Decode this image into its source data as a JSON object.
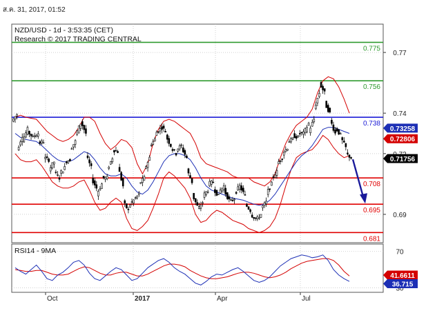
{
  "timestamp": "ส.ค. 31, 2017, 01:52",
  "header": {
    "line1": "NZD/USD - 1d - 3:53:35 (CET)",
    "line2": "Research © 2017 TRADING CENTRAL"
  },
  "colors": {
    "candle": "#000000",
    "bollinger": "#d40000",
    "ma": "#1c2fb5",
    "resistance": "#2e9a2e",
    "pivot": "#1a1ad6",
    "support": "#e00000",
    "arrow": "#1a1a9a",
    "grid": "#bfbfbf"
  },
  "chart_data": [
    {
      "type": "candlestick",
      "ylim": [
        0.676,
        0.784
      ],
      "y_ticks": [
        "0.77",
        "0.74",
        "0.72",
        "0.69"
      ],
      "x_ticks": [
        "Oct",
        "2017",
        "Apr",
        "Jul"
      ],
      "levels": [
        {
          "value": 0.775,
          "label": "0.775",
          "kind": "resistance"
        },
        {
          "value": 0.756,
          "label": "0.756",
          "kind": "resistance"
        },
        {
          "value": 0.738,
          "label": "0.738",
          "kind": "pivot"
        },
        {
          "value": 0.708,
          "label": "0.708",
          "kind": "support"
        },
        {
          "value": 0.695,
          "label": "0.695",
          "kind": "support"
        },
        {
          "value": 0.681,
          "label": "0.681",
          "kind": "support"
        }
      ],
      "price_badges": [
        {
          "label": "0.73258",
          "value": 0.73258,
          "color": "#1c2fb5"
        },
        {
          "label": "0.72806",
          "value": 0.72806,
          "color": "#d40000"
        },
        {
          "label": "0.71756",
          "value": 0.71756,
          "color": "#000000"
        }
      ],
      "close_path": [
        [
          0.736,
          0.7395
        ],
        [
          0.7215,
          0.729
        ],
        [
          0.7265,
          0.732
        ],
        [
          0.731,
          0.728
        ],
        [
          0.7285,
          0.73
        ],
        [
          0.725,
          0.726
        ],
        [
          0.718,
          0.717
        ],
        [
          0.712,
          0.716
        ],
        [
          0.711,
          0.708
        ],
        [
          0.71,
          0.713
        ],
        [
          0.716,
          0.717
        ],
        [
          0.722,
          0.726
        ],
        [
          0.729,
          0.735
        ],
        [
          0.736,
          0.73
        ],
        [
          0.719,
          0.713
        ],
        [
          0.708,
          0.703
        ],
        [
          0.7,
          0.705
        ],
        [
          0.708,
          0.708
        ],
        [
          0.712,
          0.718
        ],
        [
          0.722,
          0.721
        ],
        [
          0.714,
          0.704
        ],
        [
          0.696,
          0.692
        ],
        [
          0.694,
          0.697
        ],
        [
          0.697,
          0.7
        ],
        [
          0.705,
          0.708
        ],
        [
          0.712,
          0.718
        ],
        [
          0.724,
          0.727
        ],
        [
          0.73,
          0.732
        ],
        [
          0.734,
          0.731
        ],
        [
          0.729,
          0.724
        ],
        [
          0.723,
          0.72
        ],
        [
          0.722,
          0.724
        ],
        [
          0.723,
          0.718
        ],
        [
          0.712,
          0.706
        ],
        [
          0.7,
          0.694
        ],
        [
          0.692,
          0.696
        ],
        [
          0.699,
          0.702
        ],
        [
          0.705,
          0.706
        ],
        [
          0.703,
          0.699
        ],
        [
          0.701,
          0.704
        ],
        [
          0.702,
          0.697
        ],
        [
          0.696,
          0.698
        ],
        [
          0.7,
          0.704
        ],
        [
          0.704,
          0.699
        ],
        [
          0.695,
          0.692
        ],
        [
          0.69,
          0.688
        ],
        [
          0.687,
          0.69
        ],
        [
          0.693,
          0.696
        ],
        [
          0.7,
          0.705
        ],
        [
          0.708,
          0.711
        ],
        [
          0.715,
          0.718
        ],
        [
          0.72,
          0.723
        ],
        [
          0.726,
          0.727
        ],
        [
          0.729,
          0.728
        ],
        [
          0.73,
          0.73
        ],
        [
          0.73,
          0.735
        ],
        [
          0.731,
          0.737
        ],
        [
          0.742,
          0.75
        ],
        [
          0.755,
          0.75
        ],
        [
          0.745,
          0.74
        ],
        [
          0.737,
          0.73
        ],
        [
          0.733,
          0.729
        ],
        [
          0.728,
          0.723
        ],
        [
          0.72,
          0.718
        ]
      ],
      "bollinger_upper": [
        0.738,
        0.739,
        0.738,
        0.7375,
        0.737,
        0.734,
        0.731,
        0.729,
        0.727,
        0.726,
        0.727,
        0.729,
        0.733,
        0.738,
        0.738,
        0.736,
        0.73,
        0.725,
        0.722,
        0.724,
        0.727,
        0.726,
        0.723,
        0.715,
        0.71,
        0.715,
        0.725,
        0.732,
        0.736,
        0.737,
        0.736,
        0.734,
        0.732,
        0.73,
        0.725,
        0.718,
        0.715,
        0.714,
        0.713,
        0.712,
        0.711,
        0.709,
        0.708,
        0.708,
        0.708,
        0.706,
        0.705,
        0.704,
        0.706,
        0.71,
        0.718,
        0.725,
        0.73,
        0.734,
        0.736,
        0.738,
        0.742,
        0.75,
        0.756,
        0.758,
        0.757,
        0.753,
        0.747,
        0.74
      ],
      "bollinger_lower": [
        0.72,
        0.717,
        0.716,
        0.716,
        0.717,
        0.714,
        0.71,
        0.706,
        0.704,
        0.703,
        0.703,
        0.704,
        0.706,
        0.707,
        0.702,
        0.696,
        0.692,
        0.693,
        0.696,
        0.698,
        0.696,
        0.688,
        0.683,
        0.682,
        0.684,
        0.687,
        0.693,
        0.7,
        0.708,
        0.711,
        0.709,
        0.706,
        0.703,
        0.698,
        0.69,
        0.686,
        0.687,
        0.69,
        0.692,
        0.691,
        0.689,
        0.687,
        0.686,
        0.685,
        0.683,
        0.682,
        0.681,
        0.682,
        0.684,
        0.688,
        0.695,
        0.704,
        0.712,
        0.718,
        0.72,
        0.721,
        0.722,
        0.725,
        0.729,
        0.727,
        0.723,
        0.72,
        0.718,
        0.719
      ],
      "moving_average": [
        0.73,
        0.728,
        0.727,
        0.7265,
        0.726,
        0.724,
        0.7215,
        0.719,
        0.717,
        0.716,
        0.716,
        0.717,
        0.719,
        0.721,
        0.72,
        0.717,
        0.713,
        0.71,
        0.709,
        0.709,
        0.71,
        0.708,
        0.704,
        0.701,
        0.7,
        0.702,
        0.706,
        0.711,
        0.716,
        0.719,
        0.72,
        0.72,
        0.719,
        0.717,
        0.713,
        0.708,
        0.704,
        0.702,
        0.701,
        0.7,
        0.699,
        0.698,
        0.6975,
        0.697,
        0.696,
        0.695,
        0.6945,
        0.695,
        0.697,
        0.7,
        0.704,
        0.708,
        0.712,
        0.716,
        0.719,
        0.721,
        0.724,
        0.728,
        0.732,
        0.733,
        0.733,
        0.732,
        0.731,
        0.73
      ],
      "arrow": {
        "from": 0.7172,
        "to": 0.696
      }
    },
    {
      "type": "line",
      "title": "RSI14 - 9MA",
      "ylim": [
        25,
        78
      ],
      "y_ticks": [
        "70",
        "30"
      ],
      "badges": [
        {
          "label": "41.6611",
          "value": 41.6611,
          "color": "#d40000"
        },
        {
          "label": "36.715",
          "value": 36.715,
          "color": "#1c2fb5"
        }
      ],
      "series": [
        {
          "name": "RSI14",
          "values": [
            52,
            48,
            45,
            50,
            55,
            48,
            40,
            38,
            44,
            47,
            52,
            58,
            60,
            55,
            46,
            40,
            38,
            43,
            48,
            52,
            50,
            44,
            38,
            40,
            46,
            52,
            56,
            60,
            62,
            58,
            52,
            48,
            45,
            40,
            35,
            33,
            37,
            42,
            45,
            44,
            47,
            50,
            52,
            48,
            43,
            38,
            36,
            38,
            42,
            48,
            54,
            58,
            62,
            64,
            66,
            65,
            63,
            64,
            66,
            60,
            50,
            44,
            40,
            37
          ]
        },
        {
          "name": "9MA",
          "values": [
            50,
            49,
            48,
            48,
            49,
            49,
            47,
            45,
            44,
            44,
            45,
            48,
            51,
            53,
            52,
            49,
            46,
            44,
            44,
            46,
            47,
            47,
            45,
            43,
            43,
            45,
            48,
            51,
            54,
            56,
            56,
            55,
            53,
            49,
            46,
            43,
            41,
            40,
            40,
            41,
            42,
            44,
            46,
            47,
            47,
            46,
            44,
            42,
            41,
            42,
            44,
            47,
            51,
            54,
            57,
            59,
            60,
            61,
            62,
            62,
            60,
            55,
            48,
            43
          ]
        }
      ]
    }
  ]
}
